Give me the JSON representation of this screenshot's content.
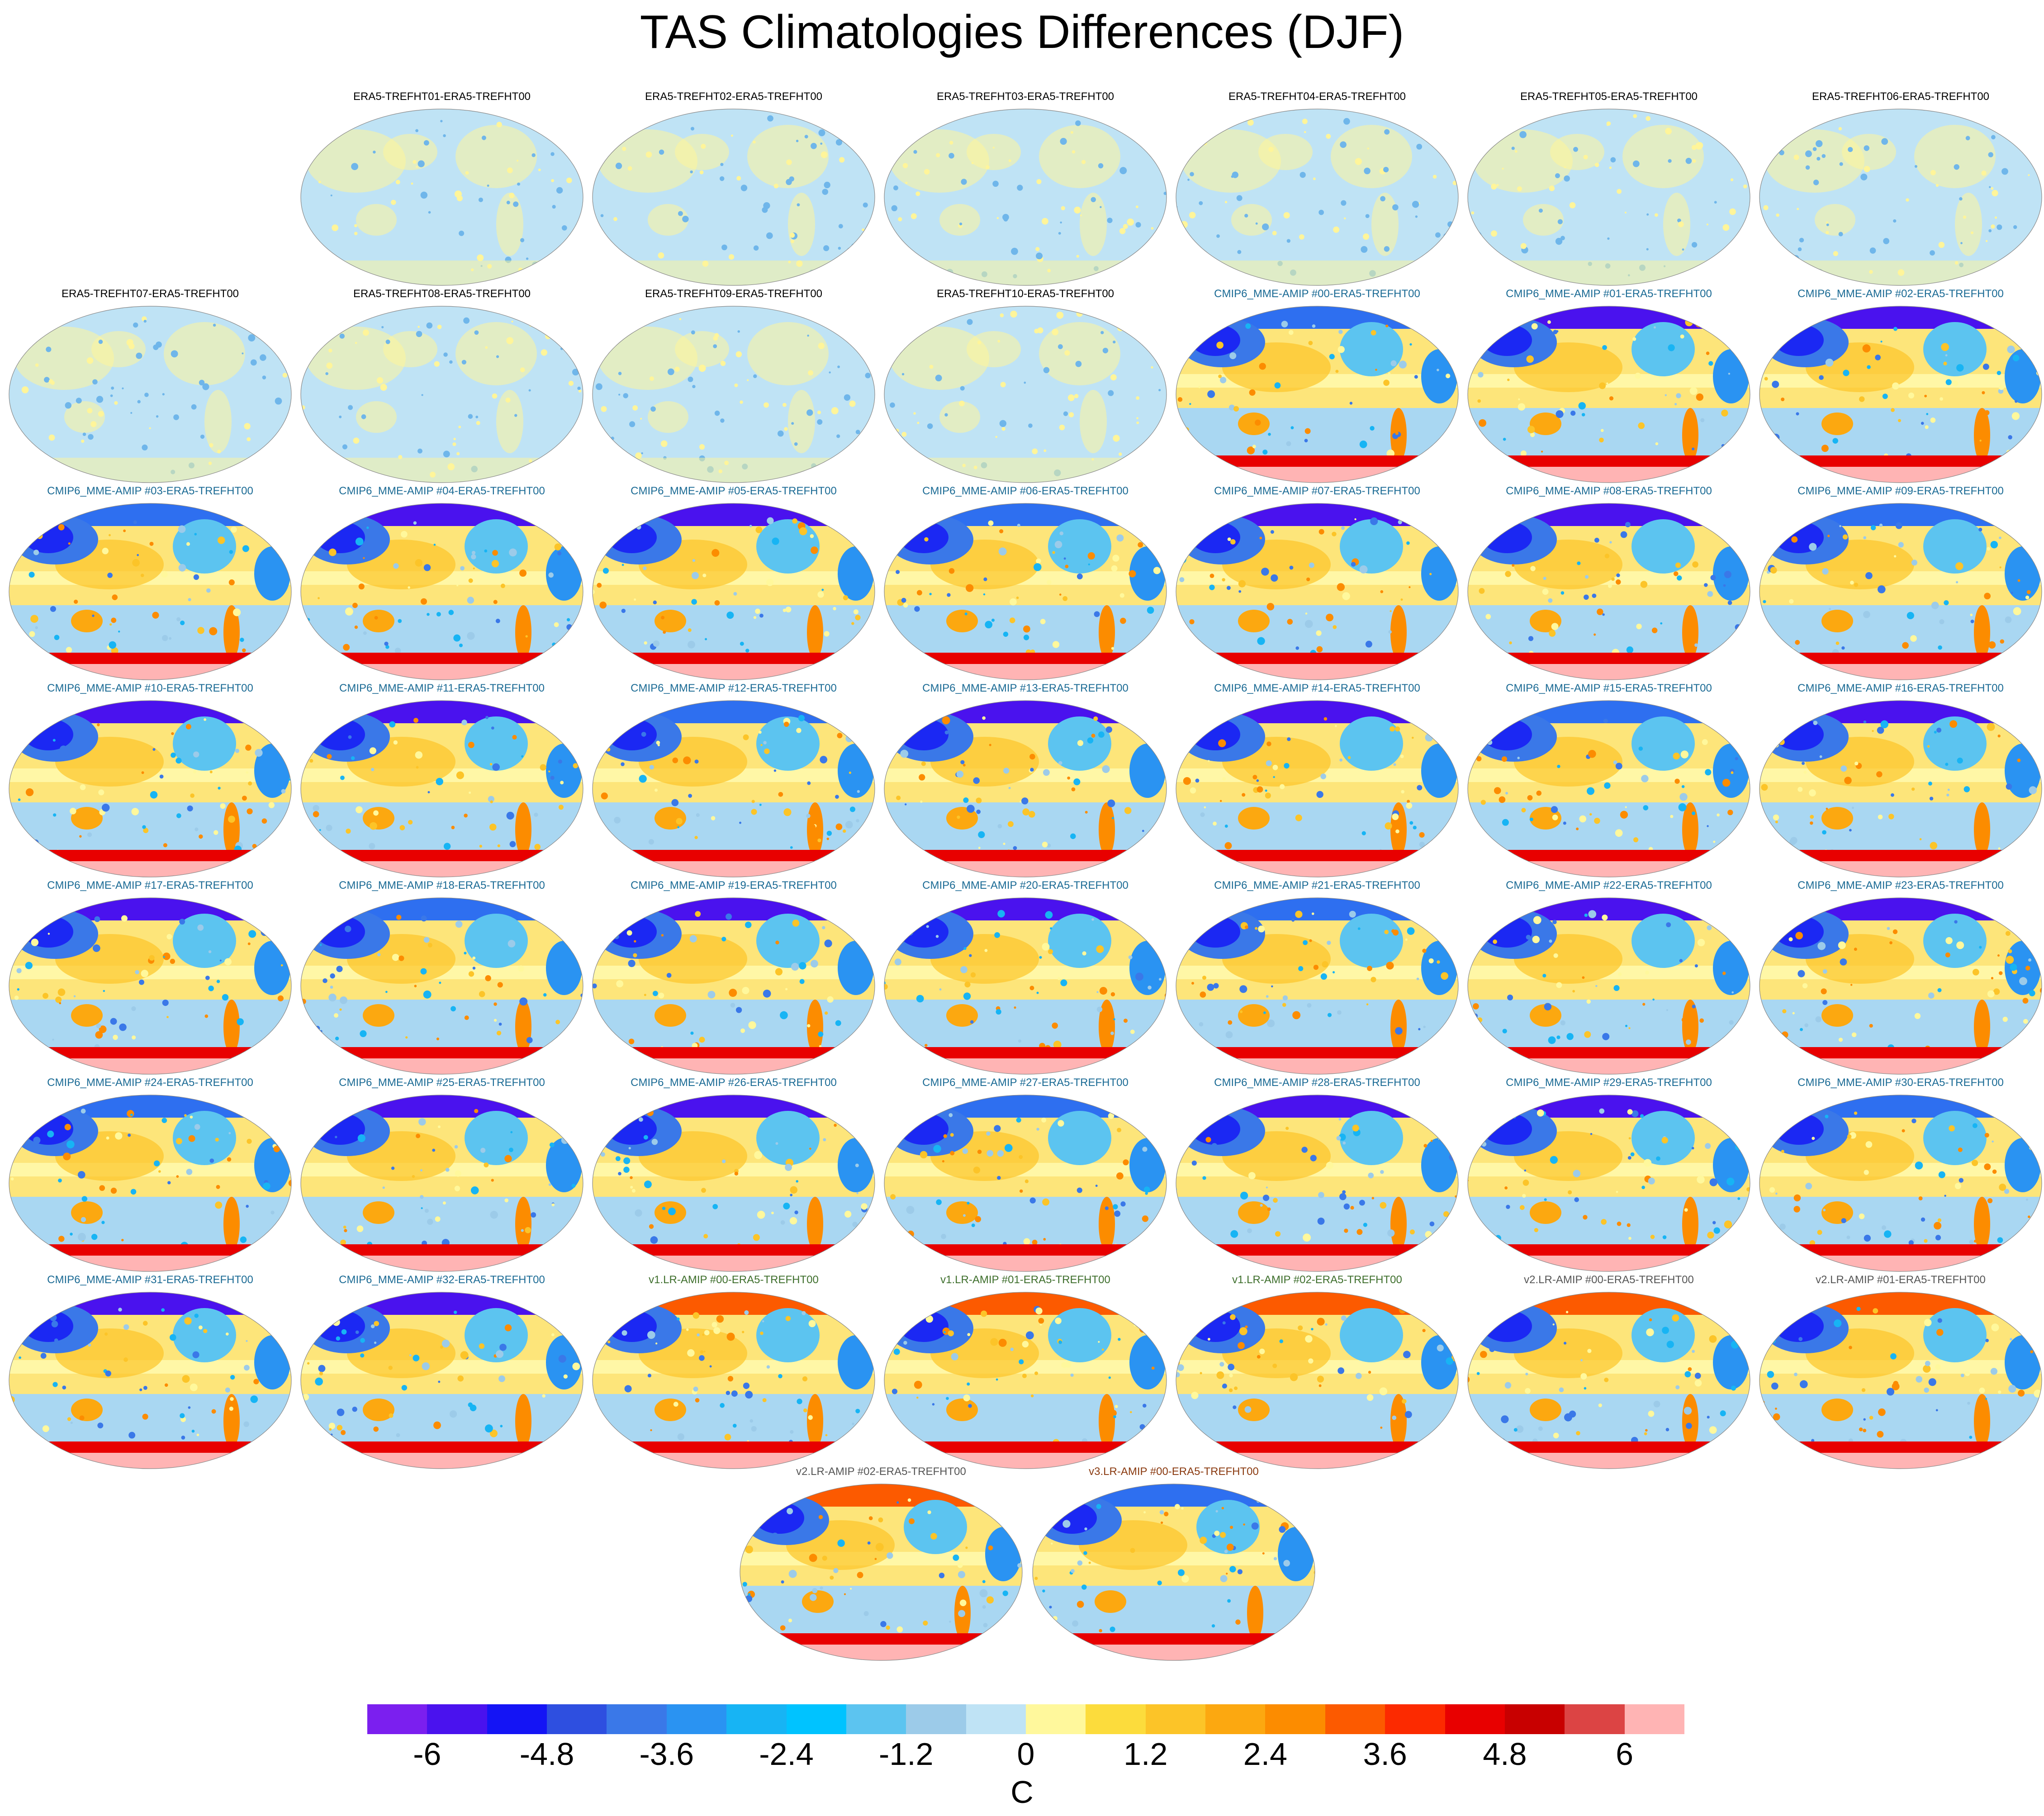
{
  "title": "TAS Climatologies Differences (DJF)",
  "colorbar": {
    "units": "C",
    "labels": [
      "-6",
      "-4.8",
      "-3.6",
      "-2.4",
      "-1.2",
      "0",
      "1.2",
      "2.4",
      "3.6",
      "4.8",
      "6"
    ],
    "colors": [
      "#7b1fef",
      "#4a12ee",
      "#1414f5",
      "#2e4fe0",
      "#3a78e8",
      "#2a93f2",
      "#17b4f4",
      "#00c3ff",
      "#5cc4f0",
      "#9ccbe9",
      "#bfe3f5",
      "#fff89c",
      "#fcdc3c",
      "#fcc428",
      "#fca810",
      "#fc8c00",
      "#fc5a00",
      "#fc2a00",
      "#e80000",
      "#c80000",
      "#dc4444",
      "#ffb4b4"
    ]
  },
  "panels": [
    {
      "title": "ERA5-TREFHT01-ERA5-TREFHT00",
      "group": "era5"
    },
    {
      "title": "ERA5-TREFHT02-ERA5-TREFHT00",
      "group": "era5"
    },
    {
      "title": "ERA5-TREFHT03-ERA5-TREFHT00",
      "group": "era5"
    },
    {
      "title": "ERA5-TREFHT04-ERA5-TREFHT00",
      "group": "era5"
    },
    {
      "title": "ERA5-TREFHT05-ERA5-TREFHT00",
      "group": "era5"
    },
    {
      "title": "ERA5-TREFHT06-ERA5-TREFHT00",
      "group": "era5"
    },
    {
      "title": "ERA5-TREFHT07-ERA5-TREFHT00",
      "group": "era5"
    },
    {
      "title": "ERA5-TREFHT08-ERA5-TREFHT00",
      "group": "era5"
    },
    {
      "title": "ERA5-TREFHT09-ERA5-TREFHT00",
      "group": "era5"
    },
    {
      "title": "ERA5-TREFHT10-ERA5-TREFHT00",
      "group": "era5"
    },
    {
      "title": "CMIP6_MME-AMIP  #00-ERA5-TREFHT00",
      "group": "cmip6"
    },
    {
      "title": "CMIP6_MME-AMIP  #01-ERA5-TREFHT00",
      "group": "cmip6"
    },
    {
      "title": "CMIP6_MME-AMIP  #02-ERA5-TREFHT00",
      "group": "cmip6"
    },
    {
      "title": "CMIP6_MME-AMIP  #03-ERA5-TREFHT00",
      "group": "cmip6"
    },
    {
      "title": "CMIP6_MME-AMIP  #04-ERA5-TREFHT00",
      "group": "cmip6"
    },
    {
      "title": "CMIP6_MME-AMIP  #05-ERA5-TREFHT00",
      "group": "cmip6"
    },
    {
      "title": "CMIP6_MME-AMIP  #06-ERA5-TREFHT00",
      "group": "cmip6"
    },
    {
      "title": "CMIP6_MME-AMIP  #07-ERA5-TREFHT00",
      "group": "cmip6"
    },
    {
      "title": "CMIP6_MME-AMIP  #08-ERA5-TREFHT00",
      "group": "cmip6"
    },
    {
      "title": "CMIP6_MME-AMIP  #09-ERA5-TREFHT00",
      "group": "cmip6"
    },
    {
      "title": "CMIP6_MME-AMIP  #10-ERA5-TREFHT00",
      "group": "cmip6"
    },
    {
      "title": "CMIP6_MME-AMIP  #11-ERA5-TREFHT00",
      "group": "cmip6"
    },
    {
      "title": "CMIP6_MME-AMIP  #12-ERA5-TREFHT00",
      "group": "cmip6"
    },
    {
      "title": "CMIP6_MME-AMIP  #13-ERA5-TREFHT00",
      "group": "cmip6"
    },
    {
      "title": "CMIP6_MME-AMIP  #14-ERA5-TREFHT00",
      "group": "cmip6"
    },
    {
      "title": "CMIP6_MME-AMIP  #15-ERA5-TREFHT00",
      "group": "cmip6"
    },
    {
      "title": "CMIP6_MME-AMIP  #16-ERA5-TREFHT00",
      "group": "cmip6"
    },
    {
      "title": "CMIP6_MME-AMIP  #17-ERA5-TREFHT00",
      "group": "cmip6"
    },
    {
      "title": "CMIP6_MME-AMIP  #18-ERA5-TREFHT00",
      "group": "cmip6"
    },
    {
      "title": "CMIP6_MME-AMIP  #19-ERA5-TREFHT00",
      "group": "cmip6"
    },
    {
      "title": "CMIP6_MME-AMIP  #20-ERA5-TREFHT00",
      "group": "cmip6"
    },
    {
      "title": "CMIP6_MME-AMIP  #21-ERA5-TREFHT00",
      "group": "cmip6"
    },
    {
      "title": "CMIP6_MME-AMIP  #22-ERA5-TREFHT00",
      "group": "cmip6"
    },
    {
      "title": "CMIP6_MME-AMIP  #23-ERA5-TREFHT00",
      "group": "cmip6"
    },
    {
      "title": "CMIP6_MME-AMIP  #24-ERA5-TREFHT00",
      "group": "cmip6"
    },
    {
      "title": "CMIP6_MME-AMIP  #25-ERA5-TREFHT00",
      "group": "cmip6"
    },
    {
      "title": "CMIP6_MME-AMIP  #26-ERA5-TREFHT00",
      "group": "cmip6"
    },
    {
      "title": "CMIP6_MME-AMIP  #27-ERA5-TREFHT00",
      "group": "cmip6"
    },
    {
      "title": "CMIP6_MME-AMIP  #28-ERA5-TREFHT00",
      "group": "cmip6"
    },
    {
      "title": "CMIP6_MME-AMIP  #29-ERA5-TREFHT00",
      "group": "cmip6"
    },
    {
      "title": "CMIP6_MME-AMIP  #30-ERA5-TREFHT00",
      "group": "cmip6"
    },
    {
      "title": "CMIP6_MME-AMIP  #31-ERA5-TREFHT00",
      "group": "cmip6"
    },
    {
      "title": "CMIP6_MME-AMIP  #32-ERA5-TREFHT00",
      "group": "cmip6"
    },
    {
      "title": "v1.LR-AMIP  #00-ERA5-TREFHT00",
      "group": "v1"
    },
    {
      "title": "v1.LR-AMIP  #01-ERA5-TREFHT00",
      "group": "v1"
    },
    {
      "title": "v1.LR-AMIP  #02-ERA5-TREFHT00",
      "group": "v1"
    },
    {
      "title": "v2.LR-AMIP  #00-ERA5-TREFHT00",
      "group": "v2"
    },
    {
      "title": "v2.LR-AMIP  #01-ERA5-TREFHT00",
      "group": "v2"
    },
    {
      "title": "v2.LR-AMIP  #02-ERA5-TREFHT00",
      "group": "v2"
    },
    {
      "title": "v3.LR-AMIP  #00-ERA5-TREFHT00",
      "group": "v3"
    }
  ]
}
